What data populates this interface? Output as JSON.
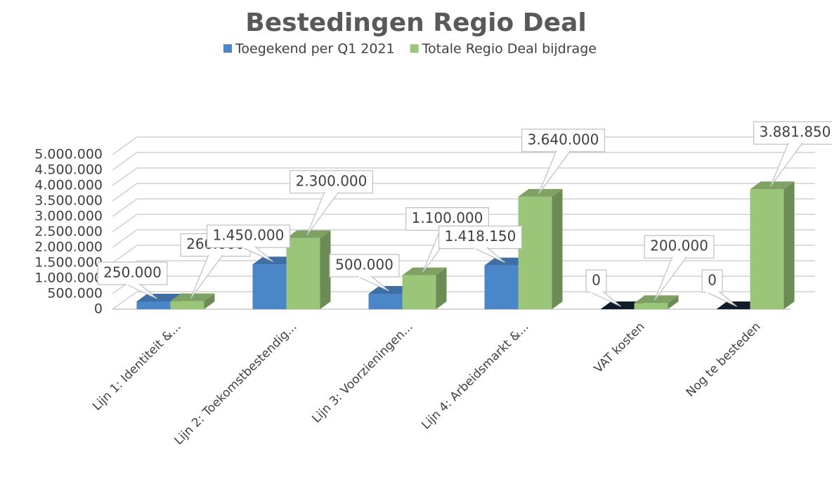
{
  "chart_data": {
    "type": "bar3d",
    "title": "Bestedingen Regio Deal",
    "categories": [
      "Lijn 1: Identiteit &...",
      "Lijn 2: Toekomstbestendig...",
      "Lijn 3: Voorzieningen...",
      "Lijn 4: Arbeidsmarkt &...",
      "VAT kosten",
      "Nog te besteden"
    ],
    "series": [
      {
        "name": "Toegekend per Q1 2021",
        "color": "#4a86c8",
        "values": [
          250000,
          1450000,
          500000,
          1418150,
          0,
          0
        ],
        "value_labels": [
          "250.000",
          "1.450.000",
          "500.000",
          "1.418.150",
          "0",
          "0"
        ]
      },
      {
        "name": "Totale Regio Deal bijdrage",
        "color": "#9bc67a",
        "values": [
          260000,
          2300000,
          1100000,
          3640000,
          200000,
          3881850
        ],
        "value_labels": [
          "260.000",
          "2.300.000",
          "1.100.000",
          "3.640.000",
          "200.000",
          "3.881.850"
        ]
      }
    ],
    "ylim": [
      0,
      5000000
    ],
    "yticks": [
      0,
      {
        "value": 500000,
        "label": "500.000"
      },
      {
        "value": 1000000,
        "label": "1.000.000"
      },
      {
        "value": 1500000,
        "label": "1.500.000"
      },
      {
        "value": 2000000,
        "label": "2.000.000"
      },
      {
        "value": 2500000,
        "label": "2.500.000"
      },
      {
        "value": 3000000,
        "label": "3.000.000"
      },
      {
        "value": 3500000,
        "label": "3.500.000"
      },
      {
        "value": 4000000,
        "label": "4.000.000"
      },
      {
        "value": 4500000,
        "label": "4.500.000"
      },
      {
        "value": 5000000,
        "label": "5.000.000"
      }
    ],
    "grid": true,
    "legend": "top"
  }
}
